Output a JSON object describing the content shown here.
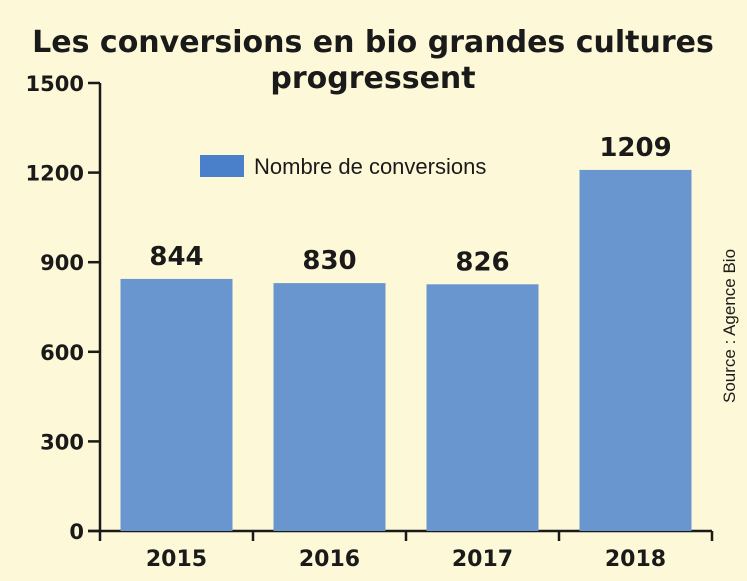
{
  "chart_data": {
    "type": "bar",
    "title_lines": [
      "Les conversions en bio grandes cultures",
      "progressent"
    ],
    "categories": [
      "2015",
      "2016",
      "2017",
      "2018"
    ],
    "series": [
      {
        "name": "Nombre de conversions",
        "values": [
          844,
          830,
          826,
          1209
        ],
        "color": "#6a96cf"
      }
    ],
    "data_labels": [
      "844",
      "830",
      "826",
      "1209"
    ],
    "yticks": [
      "0",
      "300",
      "600",
      "900",
      "1200",
      "1500"
    ],
    "ylim": [
      0,
      1500
    ],
    "grid": false,
    "legend_position": "top-left",
    "source": "Source : Agence Bio"
  },
  "colors": {
    "background": "#fdf8d8",
    "bar": "#6a96cf",
    "legend_swatch": "#4a80c9",
    "axis": "#1a1a1a"
  }
}
